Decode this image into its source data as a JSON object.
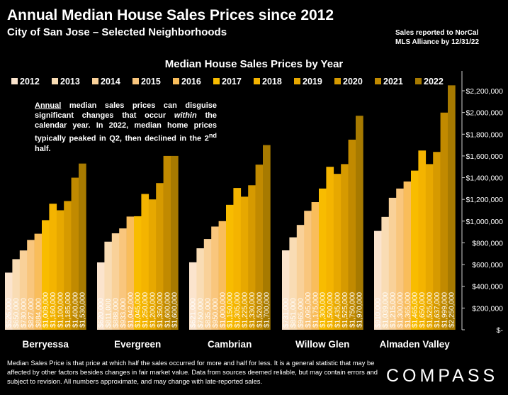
{
  "title": "Annual Median House Sales Prices since 2012",
  "subtitle": "City of San Jose – Selected Neighborhoods",
  "note_lines": [
    "Sales reported to NorCal",
    "MLS Alliance by 12/31/22"
  ],
  "annotation": {
    "lead": "Annual",
    "part1": " median sales prices can disguise significant changes that occur ",
    "emph": "within",
    "part2": " the calendar year. In 2022, median home prices typically peaked in Q2, then declined in the 2",
    "sup": "nd",
    "part3": " half."
  },
  "footer": "Median Sales Price is that price at which half the sales occurred for more and half for less. It is a general statistic that may be affected by other factors besides changes in fair market value. Data from sources deemed reliable, but may contain errors and subject to revision.  All numbers approximate, and may change with late-reported sales.",
  "logo": "COMPASS",
  "chart_data": {
    "type": "bar",
    "title": "Median House Sales Prices by Year",
    "categories": [
      "Berryessa",
      "Evergreen",
      "Cambrian",
      "Willow Glen",
      "Almaden Valley"
    ],
    "years": [
      "2012",
      "2013",
      "2014",
      "2015",
      "2016",
      "2017",
      "2018",
      "2019",
      "2020",
      "2021",
      "2022"
    ],
    "colors": [
      "#fbe4cd",
      "#f9dcb4",
      "#f9d199",
      "#f9c67d",
      "#f9bd5b",
      "#f8bc00",
      "#f4b400",
      "#e7a800",
      "#d69a00",
      "#c18a00",
      "#a77a00"
    ],
    "values": [
      [
        526000,
        650000,
        730000,
        827000,
        884000,
        1009000,
        1160000,
        1100000,
        1185000,
        1400000,
        1530000
      ],
      [
        620000,
        811000,
        888000,
        933000,
        1042000,
        1045000,
        1250000,
        1200000,
        1350000,
        1600000,
        1600000
      ],
      [
        621000,
        750000,
        835000,
        950000,
        1000000,
        1150000,
        1305000,
        1225000,
        1330000,
        1520000,
        1700000
      ],
      [
        731000,
        851000,
        965000,
        1095000,
        1175000,
        1300000,
        1500000,
        1435000,
        1525000,
        1750000,
        1970000
      ],
      [
        910000,
        1039000,
        1215000,
        1300000,
        1365000,
        1465000,
        1650000,
        1525000,
        1637000,
        1999000,
        2250000
      ]
    ],
    "value_labels": [
      [
        "$526,000",
        "$650,000",
        "$730,000",
        "$827,000",
        "$884,000",
        "$1,009,000",
        "$1,160,000",
        "$1,100,000",
        "$1,185,000",
        "$1,400,000",
        "$1,530,000"
      ],
      [
        "$620,000",
        "$811,000",
        "$888,000",
        "$933,000",
        "$1,042,000",
        "$1,045,000",
        "$1,250,000",
        "$1,200,000",
        "$1,350,000",
        "$1,600,000",
        "$1,600,000"
      ],
      [
        "$621,000",
        "$750,000",
        "$835,000",
        "$950,000",
        "$1,000,000",
        "$1,150,000",
        "$1,305,000",
        "$1,225,000",
        "$1,330,000",
        "$1,520,000",
        "$1,700,000"
      ],
      [
        "$731,000",
        "$851,000",
        "$965,000",
        "$1,095,000",
        "$1,175,000",
        "$1,300,000",
        "$1,500,000",
        "$1,435,000",
        "$1,525,000",
        "$1,750,000",
        "$1,970,000"
      ],
      [
        "$910,000",
        "$1,039,000",
        "$1,215,000",
        "$1,300,000",
        "$1,365,000",
        "$1,465,000",
        "$1,650,000",
        "$1,525,000",
        "$1,637,000",
        "$1,999,000",
        "$2,250,000"
      ]
    ],
    "y_ticks": [
      0,
      200000,
      400000,
      600000,
      800000,
      1000000,
      1200000,
      1400000,
      1600000,
      1800000,
      2000000,
      2200000
    ],
    "y_tick_labels": [
      "$-",
      "$200,000",
      "$400,000",
      "$600,000",
      "$800,000",
      "$1,000,000",
      "$1,200,000",
      "$1,400,000",
      "$1,600,000",
      "$1,800,000",
      "$2,000,000",
      "$2,200,000"
    ],
    "ylim": [
      0,
      2300000
    ],
    "y_axis_side": "right",
    "legend_position": "top",
    "grid": false
  }
}
